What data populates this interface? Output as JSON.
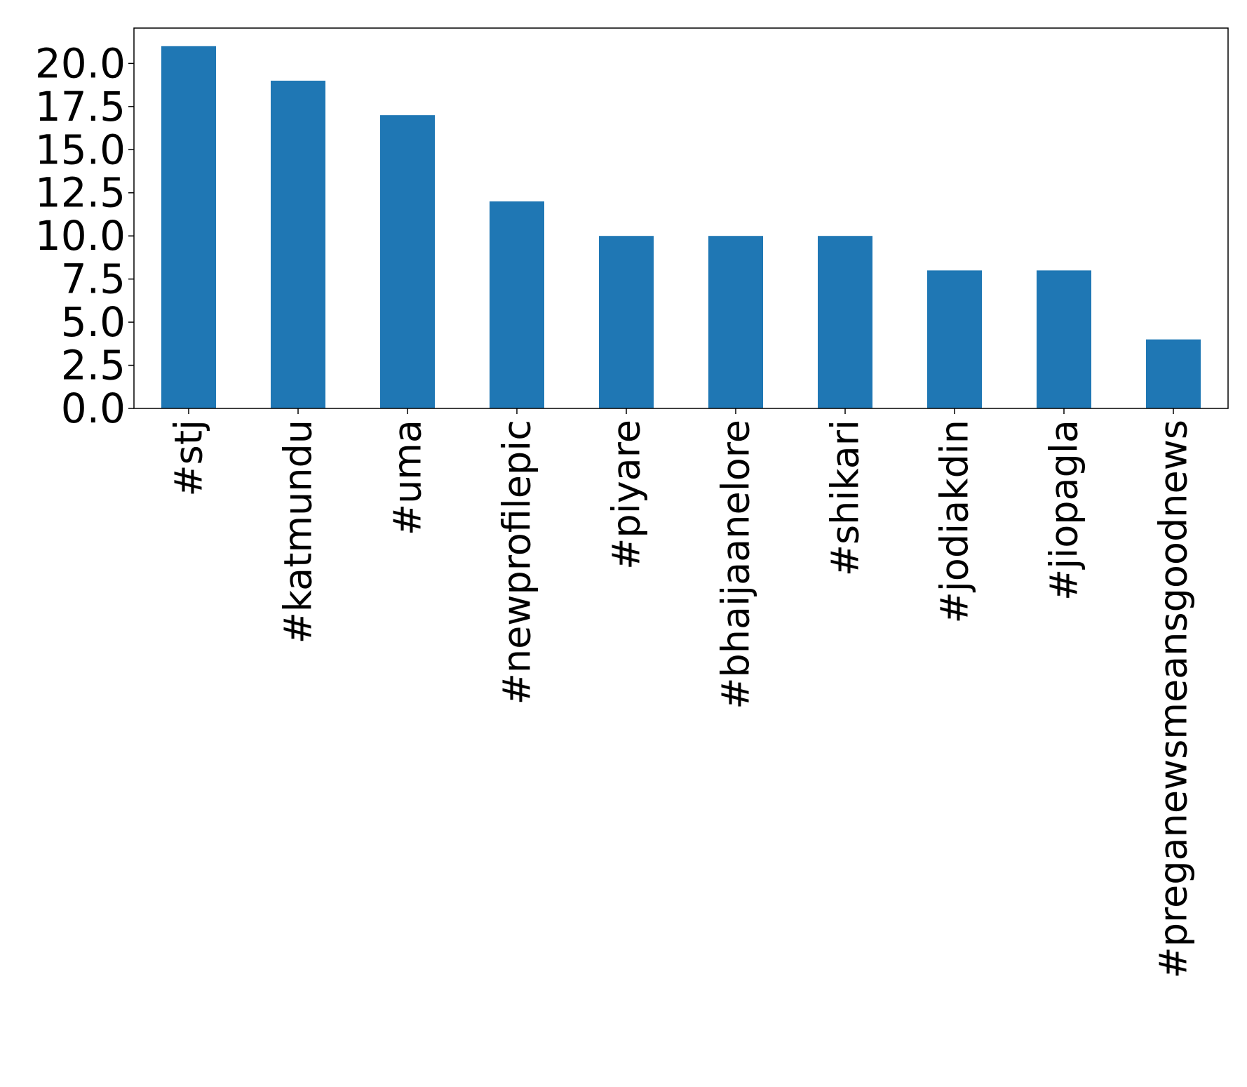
{
  "chart_data": {
    "type": "bar",
    "categories": [
      "#stj",
      "#katmundu",
      "#uma",
      "#newprofilepic",
      "#piyare",
      "#bhaijaanelore",
      "#shikari",
      "#jodiakdin",
      "#jiopagla",
      "#preganewsmeansgoodnews"
    ],
    "values": [
      21,
      19,
      17,
      12,
      10,
      10,
      10,
      8,
      8,
      4
    ],
    "ylim": [
      0,
      22.05
    ],
    "yticks": [
      "0.0",
      "2.5",
      "5.0",
      "7.5",
      "10.0",
      "12.5",
      "15.0",
      "17.5",
      "20.0"
    ],
    "title": "",
    "xlabel": "",
    "ylabel": "",
    "grid": false,
    "bar_color": "#1f77b4"
  }
}
